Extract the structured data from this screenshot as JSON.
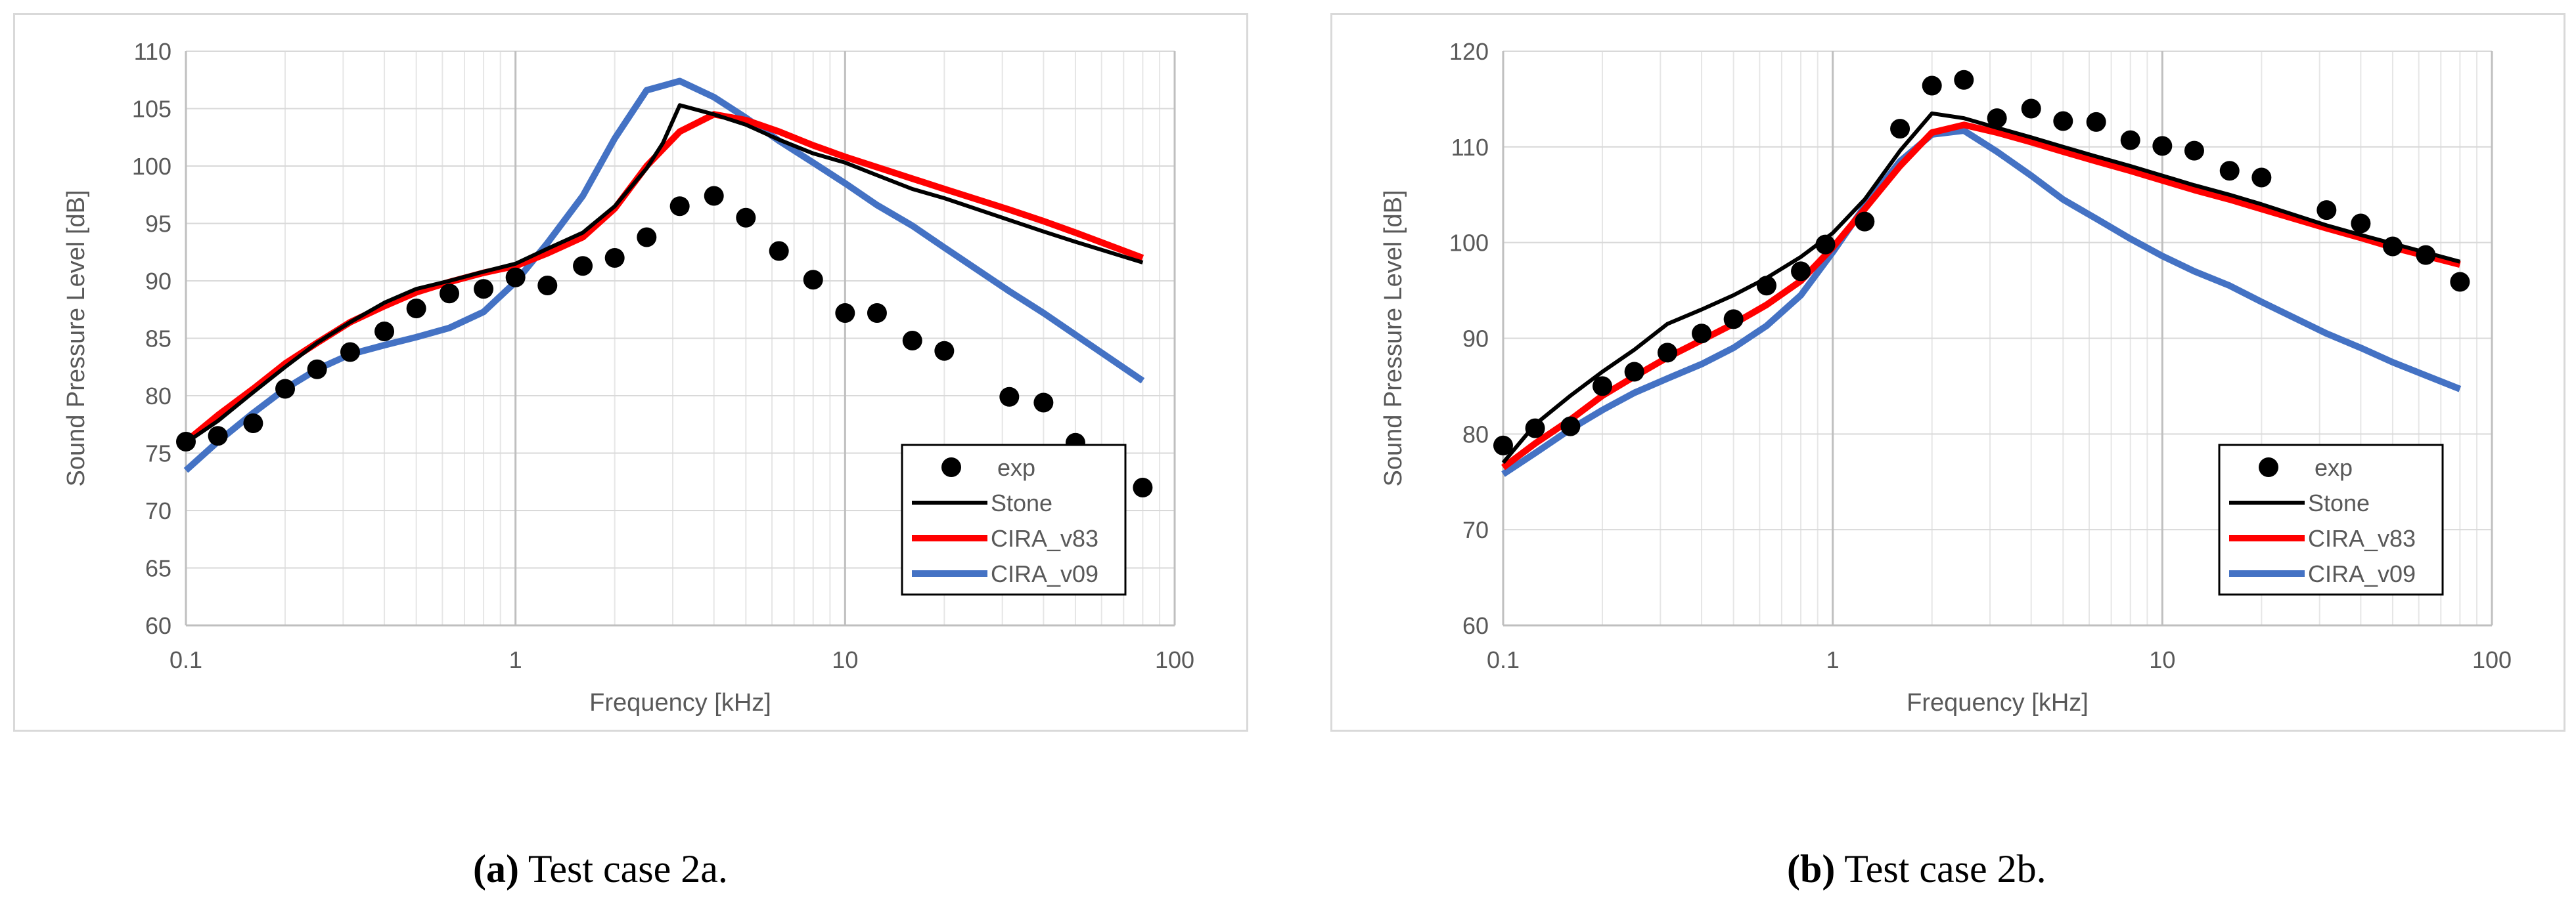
{
  "chart_data": [
    {
      "type": "line",
      "caption_letter": "a",
      "caption_text": "Test case 2a.",
      "xlabel": "Frequency [kHz]",
      "ylabel": "Sound Pressure Level [dB]",
      "xscale": "log",
      "xlim": [
        0.1,
        100
      ],
      "ylim": [
        60,
        110
      ],
      "y_ticks": [
        60,
        65,
        70,
        75,
        80,
        85,
        90,
        95,
        100,
        105,
        110
      ],
      "x_ticks": [
        0.1,
        1,
        10,
        100
      ],
      "x_tick_labels": [
        "0.1",
        "1",
        "10",
        "100"
      ],
      "grid": true,
      "legend_position": "bottom-right",
      "series": [
        {
          "name": "exp",
          "kind": "scatter",
          "color": "#000000",
          "x": [
            0.1,
            0.125,
            0.16,
            0.2,
            0.25,
            0.315,
            0.4,
            0.5,
            0.63,
            0.8,
            1.0,
            1.25,
            1.6,
            2.0,
            2.5,
            3.15,
            4.0,
            5.0,
            6.3,
            8.0,
            10.0,
            12.5,
            16.0,
            20.0,
            31.5,
            40.0,
            50.0,
            80.0
          ],
          "y": [
            76.0,
            76.5,
            77.6,
            80.6,
            82.3,
            83.8,
            85.6,
            87.6,
            88.9,
            89.3,
            90.3,
            89.6,
            91.3,
            92.0,
            93.8,
            96.5,
            97.4,
            95.5,
            92.6,
            90.1,
            87.2,
            87.2,
            84.8,
            83.9,
            79.9,
            79.4,
            75.9,
            72.0
          ]
        },
        {
          "name": "Stone",
          "kind": "line",
          "color": "#000000",
          "x": [
            0.1,
            0.125,
            0.16,
            0.2,
            0.25,
            0.315,
            0.4,
            0.5,
            0.63,
            0.8,
            1.0,
            1.25,
            1.6,
            2.0,
            2.5,
            2.8,
            3.15,
            4.0,
            5.0,
            6.3,
            8.0,
            10.0,
            12.5,
            16.0,
            20.0,
            31.5,
            40.0,
            50.0,
            80.0
          ],
          "y": [
            75.9,
            77.8,
            80.3,
            82.5,
            84.6,
            86.4,
            88.1,
            89.3,
            90.0,
            90.8,
            91.5,
            92.8,
            94.2,
            96.5,
            99.8,
            102.0,
            105.3,
            104.5,
            103.6,
            102.3,
            101.1,
            100.3,
            99.2,
            98.0,
            97.2,
            95.3,
            94.3,
            93.4,
            91.6
          ]
        },
        {
          "name": "CIRA_v83",
          "kind": "line",
          "color": "#ff0000",
          "x": [
            0.1,
            0.125,
            0.16,
            0.2,
            0.25,
            0.315,
            0.4,
            0.5,
            0.63,
            0.8,
            1.0,
            1.25,
            1.6,
            2.0,
            2.5,
            3.15,
            4.0,
            5.0,
            6.3,
            8.0,
            10.0,
            12.5,
            16.0,
            20.0,
            31.5,
            40.0,
            50.0,
            80.0
          ],
          "y": [
            76.0,
            78.3,
            80.6,
            82.8,
            84.6,
            86.4,
            87.8,
            89.0,
            89.9,
            90.7,
            91.3,
            92.4,
            93.8,
            96.3,
            100.0,
            103.0,
            104.5,
            104.0,
            103.0,
            101.8,
            100.8,
            99.9,
            98.9,
            98.0,
            96.2,
            95.2,
            94.2,
            92.0
          ]
        },
        {
          "name": "CIRA_v09",
          "kind": "line",
          "color": "#4472c4",
          "x": [
            0.1,
            0.125,
            0.16,
            0.2,
            0.25,
            0.315,
            0.4,
            0.5,
            0.63,
            0.8,
            1.0,
            1.25,
            1.6,
            2.0,
            2.5,
            3.15,
            4.0,
            5.0,
            6.3,
            8.0,
            10.0,
            12.5,
            16.0,
            20.0,
            31.5,
            40.0,
            50.0,
            80.0
          ],
          "y": [
            73.5,
            76.0,
            78.5,
            80.6,
            82.3,
            83.6,
            84.4,
            85.1,
            85.9,
            87.3,
            89.9,
            93.3,
            97.4,
            102.4,
            106.6,
            107.4,
            106.0,
            104.2,
            102.2,
            100.3,
            98.5,
            96.6,
            94.8,
            92.9,
            89.1,
            87.2,
            85.3,
            81.3
          ]
        }
      ]
    },
    {
      "type": "line",
      "caption_letter": "b",
      "caption_text": "Test case 2b.",
      "xlabel": "Frequency [kHz]",
      "ylabel": "Sound Pressure Level [dB]",
      "xscale": "log",
      "xlim": [
        0.1,
        100
      ],
      "ylim": [
        60,
        120
      ],
      "y_ticks": [
        60,
        70,
        80,
        90,
        100,
        110,
        120
      ],
      "x_ticks": [
        0.1,
        1,
        10,
        100
      ],
      "x_tick_labels": [
        "0.1",
        "1",
        "10",
        "100"
      ],
      "grid": true,
      "legend_position": "bottom-right",
      "series": [
        {
          "name": "exp",
          "kind": "scatter",
          "color": "#000000",
          "x": [
            0.1,
            0.125,
            0.16,
            0.2,
            0.25,
            0.315,
            0.4,
            0.5,
            0.63,
            0.8,
            0.95,
            1.25,
            1.6,
            2.0,
            2.5,
            3.15,
            4.0,
            5.0,
            6.3,
            8.0,
            10.0,
            12.5,
            16.0,
            20.0,
            31.5,
            40.0,
            50.0,
            63.0,
            80.0
          ],
          "y": [
            78.8,
            80.6,
            80.8,
            85.0,
            86.5,
            88.5,
            90.5,
            92.0,
            95.5,
            97.0,
            99.8,
            102.2,
            111.9,
            116.4,
            117.0,
            113.0,
            114.0,
            112.7,
            112.6,
            110.7,
            110.1,
            109.6,
            107.5,
            106.8,
            103.4,
            102.0,
            99.6,
            98.7,
            95.9
          ]
        },
        {
          "name": "Stone",
          "kind": "line",
          "color": "#000000",
          "x": [
            0.1,
            0.125,
            0.16,
            0.2,
            0.25,
            0.315,
            0.4,
            0.5,
            0.63,
            0.8,
            1.0,
            1.25,
            1.6,
            2.0,
            2.5,
            3.15,
            4.0,
            5.0,
            6.3,
            8.0,
            10.0,
            12.5,
            16.0,
            20.0,
            31.5,
            40.0,
            50.0,
            80.0
          ],
          "y": [
            77.0,
            81.0,
            84.0,
            86.5,
            88.8,
            91.5,
            93.0,
            94.5,
            96.3,
            98.5,
            101.0,
            104.5,
            109.6,
            113.5,
            113.0,
            112.0,
            111.0,
            110.0,
            109.0,
            108.0,
            107.0,
            106.0,
            105.0,
            104.0,
            101.8,
            100.8,
            99.9,
            98.0
          ]
        },
        {
          "name": "CIRA_v83",
          "kind": "line",
          "color": "#ff0000",
          "x": [
            0.1,
            0.125,
            0.16,
            0.2,
            0.25,
            0.315,
            0.4,
            0.5,
            0.63,
            0.8,
            1.0,
            1.25,
            1.6,
            2.0,
            2.5,
            3.15,
            4.0,
            5.0,
            6.3,
            8.0,
            10.0,
            12.5,
            16.0,
            20.0,
            31.5,
            40.0,
            50.0,
            80.0
          ],
          "y": [
            76.5,
            79.0,
            81.5,
            84.0,
            86.0,
            88.0,
            89.8,
            91.5,
            93.5,
            96.0,
            99.5,
            103.5,
            108.0,
            111.5,
            112.3,
            111.5,
            110.5,
            109.5,
            108.5,
            107.5,
            106.5,
            105.5,
            104.5,
            103.5,
            101.5,
            100.5,
            99.5,
            97.7
          ]
        },
        {
          "name": "CIRA_v09",
          "kind": "line",
          "color": "#4472c4",
          "x": [
            0.1,
            0.125,
            0.16,
            0.2,
            0.25,
            0.315,
            0.4,
            0.5,
            0.63,
            0.8,
            1.0,
            1.25,
            1.6,
            2.0,
            2.5,
            3.15,
            4.0,
            5.0,
            6.3,
            8.0,
            10.0,
            12.5,
            16.0,
            20.0,
            31.5,
            40.0,
            50.0,
            80.0
          ],
          "y": [
            75.8,
            78.0,
            80.5,
            82.5,
            84.3,
            85.8,
            87.3,
            89.0,
            91.3,
            94.5,
            99.0,
            103.8,
            108.5,
            111.3,
            111.7,
            109.5,
            107.0,
            104.5,
            102.5,
            100.4,
            98.6,
            97.0,
            95.5,
            93.8,
            90.5,
            89.0,
            87.5,
            84.7
          ]
        }
      ]
    }
  ]
}
